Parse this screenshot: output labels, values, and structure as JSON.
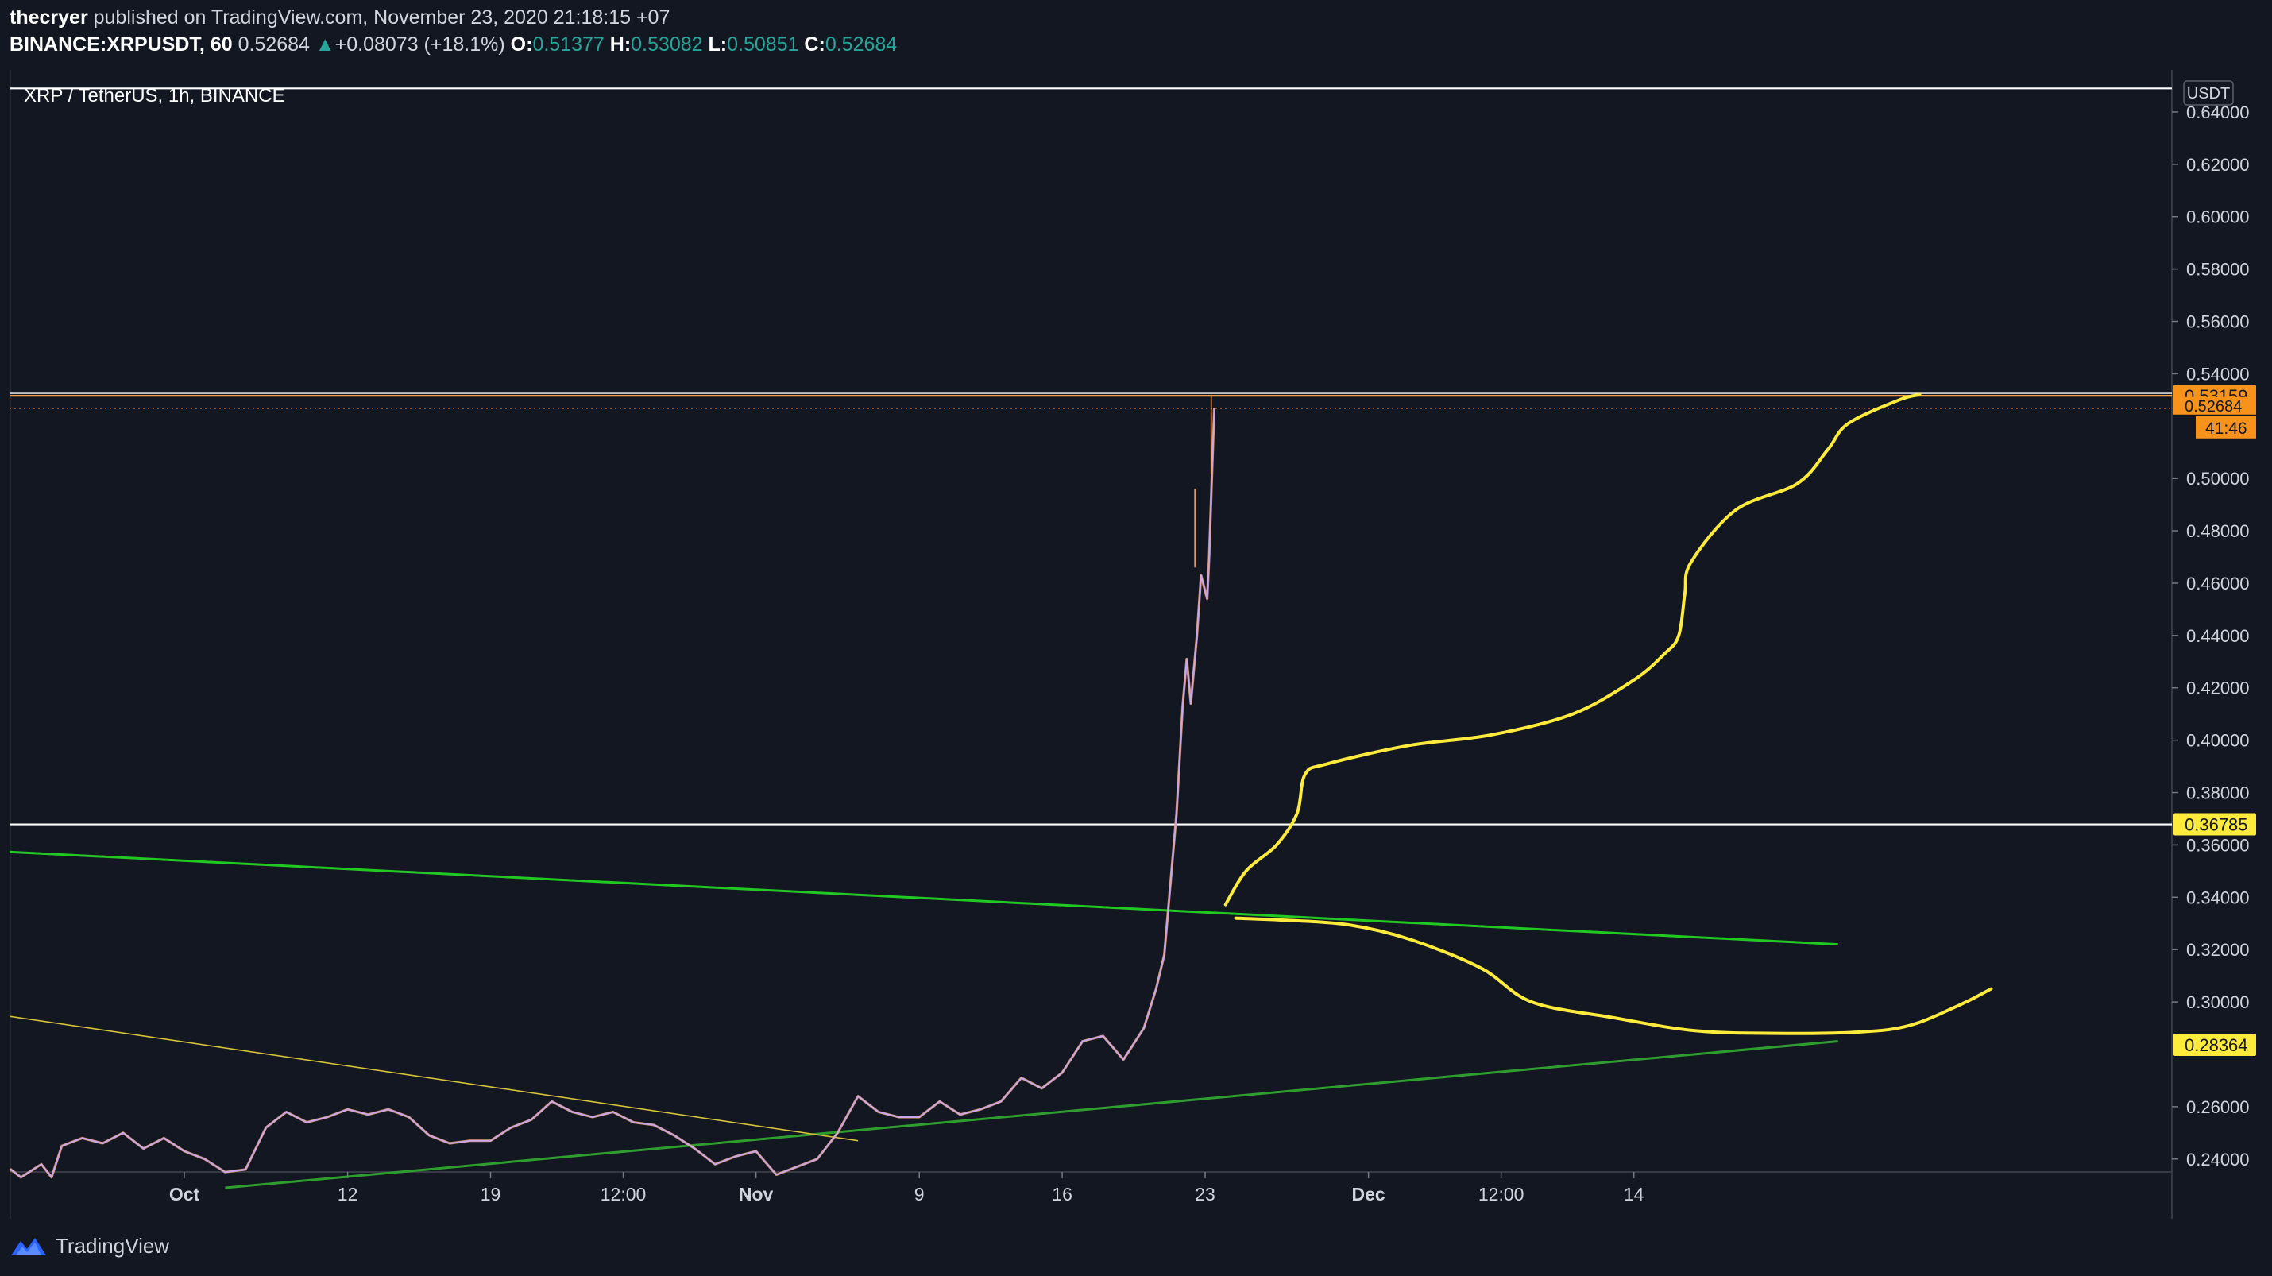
{
  "publish": {
    "author": "thecryer",
    "published_text": "published on TradingView.com, November 23, 2020 21:18:15 +07"
  },
  "quote": {
    "symbol": "BINANCE:XRPUSDT, 60",
    "last": "0.52684",
    "arrow": "▲",
    "change": "+0.08073 (+18.1%)",
    "o_label": "O:",
    "o": "0.51377",
    "h_label": "H:",
    "h": "0.53082",
    "l_label": "L:",
    "l": "0.50851",
    "c_label": "C:",
    "c": "0.52684"
  },
  "legend": {
    "title": "XRP / TetherUS, 1h, BINANCE"
  },
  "footer": {
    "brand": "TradingView",
    "logo_icon": "tradingview-logo-icon"
  },
  "colors": {
    "background": "#131722",
    "text": "#d1d4dc",
    "up": "#26a69a",
    "price_series": "#c9a7e8",
    "price_series_accent": "#f0a060",
    "resistance": "#f59b42",
    "projection": "#ffeb3b",
    "trendline_upper": "#22c922",
    "trendline_lower": "#2e9e2e",
    "old_trendline": "#d4c23a",
    "horizontal": "#ffffff"
  },
  "chart_data": {
    "type": "line",
    "symbol": "XRP / TetherUS, 1h, BINANCE",
    "currency": "USDT",
    "ylim": [
      0.229,
      0.65
    ],
    "y_ticks": [
      "0.64000",
      "0.62000",
      "0.60000",
      "0.58000",
      "0.56000",
      "0.54000",
      "0.50000",
      "0.48000",
      "0.46000",
      "0.44000",
      "0.42000",
      "0.40000",
      "0.38000",
      "0.36000",
      "0.34000",
      "0.32000",
      "0.30000",
      "0.26000",
      "0.24000"
    ],
    "x_range_days": [
      0,
      90
    ],
    "x_ticks": [
      {
        "label": "Oct",
        "day": 4,
        "bold": true
      },
      {
        "label": "12",
        "day": 12
      },
      {
        "label": "19",
        "day": 19
      },
      {
        "label": "12:00",
        "day": 25.5
      },
      {
        "label": "Nov",
        "day": 32,
        "bold": true
      },
      {
        "label": "9",
        "day": 40
      },
      {
        "label": "16",
        "day": 47
      },
      {
        "label": "23",
        "day": 54
      },
      {
        "label": "Dec",
        "day": 62,
        "bold": true
      },
      {
        "label": "12:00",
        "day": 68.5
      },
      {
        "label": "14",
        "day": 75
      }
    ],
    "series": [
      {
        "name": "XRPUSDT",
        "points": [
          [
            -5,
            0.232
          ],
          [
            -4.5,
            0.236
          ],
          [
            -4,
            0.233
          ],
          [
            -3,
            0.238
          ],
          [
            -2.5,
            0.233
          ],
          [
            -2,
            0.245
          ],
          [
            -1,
            0.248
          ],
          [
            0,
            0.246
          ],
          [
            1,
            0.25
          ],
          [
            2,
            0.244
          ],
          [
            3,
            0.248
          ],
          [
            4,
            0.243
          ],
          [
            5,
            0.24
          ],
          [
            6,
            0.235
          ],
          [
            7,
            0.236
          ],
          [
            8,
            0.252
          ],
          [
            9,
            0.258
          ],
          [
            10,
            0.254
          ],
          [
            11,
            0.256
          ],
          [
            12,
            0.259
          ],
          [
            13,
            0.257
          ],
          [
            14,
            0.259
          ],
          [
            15,
            0.256
          ],
          [
            16,
            0.249
          ],
          [
            17,
            0.246
          ],
          [
            18,
            0.247
          ],
          [
            19,
            0.247
          ],
          [
            20,
            0.252
          ],
          [
            21,
            0.255
          ],
          [
            22,
            0.262
          ],
          [
            23,
            0.258
          ],
          [
            24,
            0.256
          ],
          [
            25,
            0.258
          ],
          [
            26,
            0.254
          ],
          [
            27,
            0.253
          ],
          [
            28,
            0.249
          ],
          [
            29,
            0.244
          ],
          [
            30,
            0.238
          ],
          [
            31,
            0.241
          ],
          [
            32,
            0.243
          ],
          [
            33,
            0.234
          ],
          [
            34,
            0.237
          ],
          [
            35,
            0.24
          ],
          [
            36,
            0.25
          ],
          [
            37,
            0.264
          ],
          [
            38,
            0.258
          ],
          [
            39,
            0.256
          ],
          [
            40,
            0.256
          ],
          [
            41,
            0.262
          ],
          [
            42,
            0.257
          ],
          [
            43,
            0.259
          ],
          [
            44,
            0.262
          ],
          [
            45,
            0.271
          ],
          [
            46,
            0.267
          ],
          [
            47,
            0.273
          ],
          [
            48,
            0.285
          ],
          [
            49,
            0.287
          ],
          [
            50,
            0.278
          ],
          [
            51,
            0.29
          ],
          [
            51.6,
            0.305
          ],
          [
            52,
            0.318
          ],
          [
            52.3,
            0.345
          ],
          [
            52.6,
            0.372
          ],
          [
            52.9,
            0.413
          ],
          [
            53.1,
            0.431
          ],
          [
            53.3,
            0.414
          ],
          [
            53.6,
            0.44
          ],
          [
            53.8,
            0.463
          ],
          [
            54.1,
            0.454
          ],
          [
            54.2,
            0.47
          ],
          [
            54.35,
            0.505
          ],
          [
            54.45,
            0.527
          ]
        ],
        "high_spike": [
          [
            53.5,
            0.496
          ],
          [
            54.3,
            0.5316
          ]
        ]
      }
    ],
    "levels": [
      {
        "name": "top-horizontal",
        "price": 0.649,
        "color": "white"
      },
      {
        "name": "resistance",
        "price": 0.53159,
        "label": "0.53159",
        "color": "orange"
      },
      {
        "name": "last-price",
        "price": 0.52684,
        "label": "0.52684",
        "dotted": true,
        "countdown": "41:46"
      },
      {
        "name": "support",
        "price": 0.36785,
        "label": "0.36785",
        "color": "white"
      },
      {
        "name": "lower-trend-ref",
        "price": 0.28364,
        "label": "0.28364"
      }
    ],
    "trendlines": [
      {
        "name": "green-upper",
        "from": [
          -5,
          0.3575
        ],
        "to": [
          85,
          0.322
        ]
      },
      {
        "name": "green-lower",
        "from": [
          6,
          0.229
        ],
        "to": [
          85,
          0.285
        ]
      },
      {
        "name": "yellow-old",
        "from": [
          -5,
          0.295
        ],
        "to": [
          37,
          0.247
        ]
      }
    ],
    "projections": [
      {
        "name": "bull-path",
        "points": [
          [
            55.0,
            0.3372
          ],
          [
            56.0,
            0.35
          ],
          [
            57.5,
            0.36
          ],
          [
            58.5,
            0.372
          ],
          [
            58.9,
            0.387
          ],
          [
            60,
            0.391
          ],
          [
            64,
            0.398
          ],
          [
            68,
            0.402
          ],
          [
            72,
            0.41
          ],
          [
            75,
            0.423
          ],
          [
            76.5,
            0.433
          ],
          [
            77.2,
            0.44
          ],
          [
            77.5,
            0.456
          ],
          [
            77.8,
            0.468
          ],
          [
            80,
            0.488
          ],
          [
            83,
            0.498
          ],
          [
            84.5,
            0.511
          ],
          [
            85.5,
            0.521
          ],
          [
            88,
            0.53
          ],
          [
            89,
            0.532
          ]
        ]
      },
      {
        "name": "bear-path",
        "points": [
          [
            55.5,
            0.332
          ],
          [
            58,
            0.3312
          ],
          [
            61,
            0.3295
          ],
          [
            64,
            0.324
          ],
          [
            67.5,
            0.313
          ],
          [
            70,
            0.3
          ],
          [
            74,
            0.294
          ],
          [
            78,
            0.289
          ],
          [
            82,
            0.288
          ],
          [
            86,
            0.2885
          ],
          [
            88.5,
            0.291
          ],
          [
            91,
            0.299
          ],
          [
            92.5,
            0.305
          ]
        ]
      }
    ],
    "grid": false,
    "legend_position": "top-left"
  }
}
